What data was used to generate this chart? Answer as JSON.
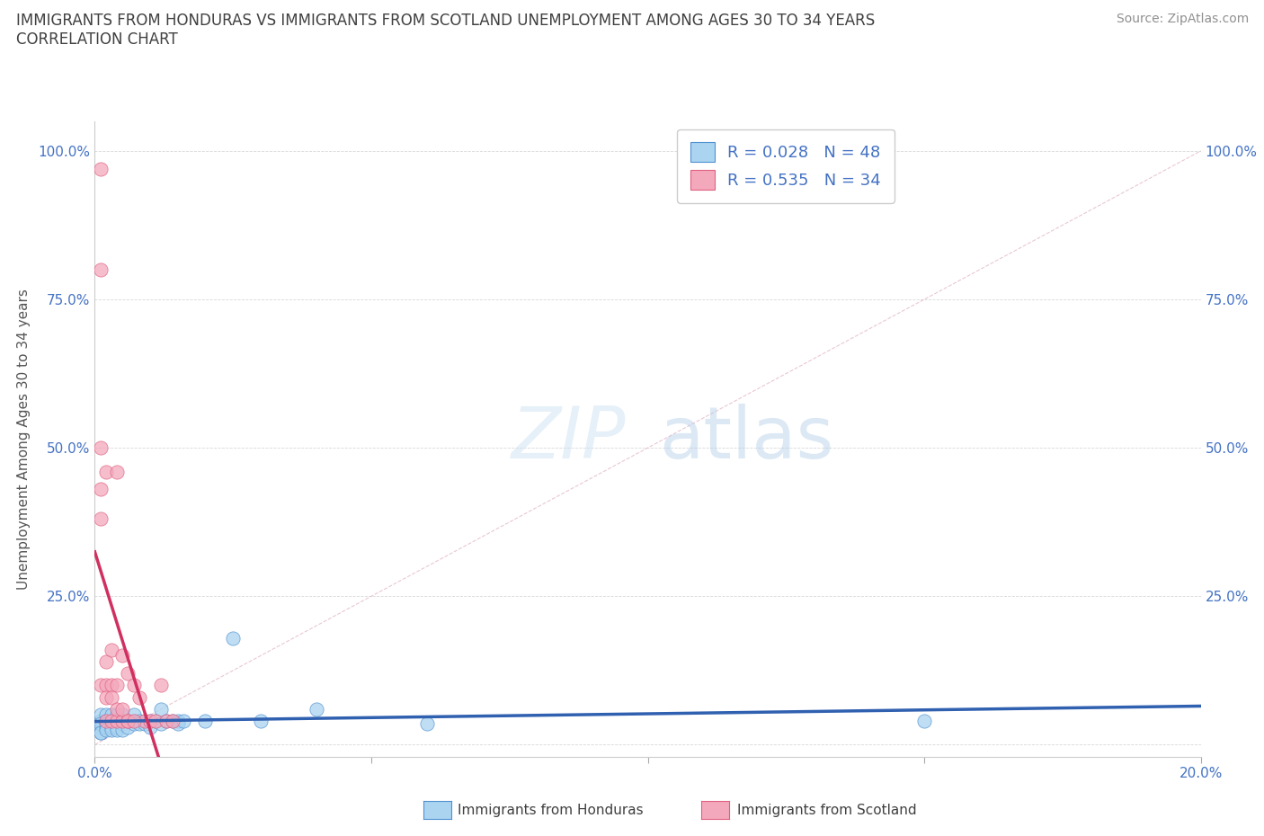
{
  "title_line1": "IMMIGRANTS FROM HONDURAS VS IMMIGRANTS FROM SCOTLAND UNEMPLOYMENT AMONG AGES 30 TO 34 YEARS",
  "title_line2": "CORRELATION CHART",
  "source": "Source: ZipAtlas.com",
  "ylabel": "Unemployment Among Ages 30 to 34 years",
  "xlim": [
    0.0,
    0.2
  ],
  "ylim": [
    -0.02,
    1.05
  ],
  "honduras_R": 0.028,
  "honduras_N": 48,
  "scotland_R": 0.535,
  "scotland_N": 34,
  "legend_entries": [
    "Immigrants from Honduras",
    "Immigrants from Scotland"
  ],
  "color_honduras": "#aad4f0",
  "color_scotland": "#f4a8bc",
  "color_honduras_edge": "#5090d0",
  "color_scotland_edge": "#e06080",
  "color_honduras_line": "#3060b0",
  "color_scotland_line": "#d03060",
  "color_dashed_line": "#e0b0c0",
  "color_title": "#404040",
  "color_source": "#909090",
  "color_axis_labels": "#4472c4",
  "color_legend_text": "#4472c4",
  "watermark_zip": "ZIP",
  "watermark_atlas": "atlas",
  "background_color": "#ffffff",
  "honduras_x": [
    0.001,
    0.001,
    0.001,
    0.001,
    0.001,
    0.001,
    0.002,
    0.002,
    0.002,
    0.002,
    0.002,
    0.003,
    0.003,
    0.003,
    0.003,
    0.004,
    0.004,
    0.004,
    0.004,
    0.005,
    0.005,
    0.005,
    0.005,
    0.006,
    0.006,
    0.007,
    0.007,
    0.007,
    0.008,
    0.008,
    0.009,
    0.009,
    0.01,
    0.01,
    0.011,
    0.012,
    0.012,
    0.013,
    0.014,
    0.015,
    0.015,
    0.016,
    0.02,
    0.025,
    0.03,
    0.04,
    0.15,
    0.06
  ],
  "honduras_y": [
    0.03,
    0.04,
    0.02,
    0.05,
    0.035,
    0.02,
    0.03,
    0.05,
    0.04,
    0.035,
    0.025,
    0.04,
    0.03,
    0.05,
    0.025,
    0.04,
    0.03,
    0.05,
    0.025,
    0.04,
    0.035,
    0.05,
    0.025,
    0.04,
    0.03,
    0.04,
    0.035,
    0.05,
    0.04,
    0.035,
    0.04,
    0.035,
    0.04,
    0.03,
    0.04,
    0.06,
    0.035,
    0.04,
    0.04,
    0.04,
    0.035,
    0.04,
    0.04,
    0.18,
    0.04,
    0.06,
    0.04,
    0.035
  ],
  "scotland_x": [
    0.001,
    0.001,
    0.001,
    0.001,
    0.001,
    0.002,
    0.002,
    0.002,
    0.002,
    0.003,
    0.003,
    0.003,
    0.004,
    0.004,
    0.004,
    0.005,
    0.005,
    0.006,
    0.006,
    0.007,
    0.008,
    0.009,
    0.01,
    0.011,
    0.012,
    0.013,
    0.014,
    0.001,
    0.002,
    0.003,
    0.004,
    0.005,
    0.006,
    0.007
  ],
  "scotland_y": [
    0.97,
    0.8,
    0.5,
    0.43,
    0.1,
    0.46,
    0.14,
    0.1,
    0.04,
    0.16,
    0.1,
    0.04,
    0.46,
    0.1,
    0.04,
    0.15,
    0.04,
    0.12,
    0.04,
    0.1,
    0.08,
    0.04,
    0.04,
    0.04,
    0.1,
    0.04,
    0.04,
    0.38,
    0.08,
    0.08,
    0.06,
    0.06,
    0.04,
    0.04
  ]
}
